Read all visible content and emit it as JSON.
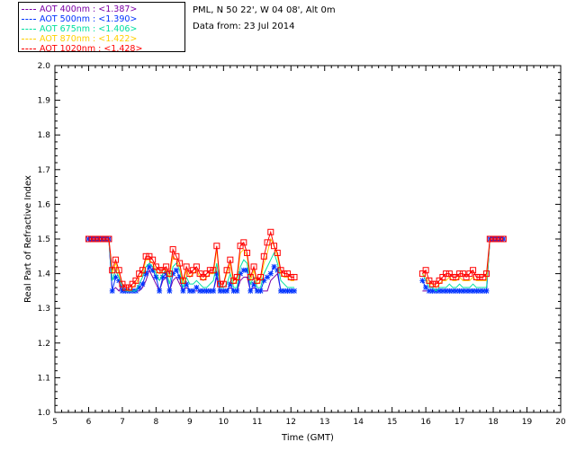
{
  "header": {
    "site": "PML, N 50 22', W 04 08', Alt 0m",
    "date": "Data from: 23 Jul 2014"
  },
  "chart_data": {
    "type": "line",
    "xlabel": "Time (GMT)",
    "ylabel": "Real Part of Refractive Index",
    "xlim": [
      5,
      20
    ],
    "ylim": [
      1.0,
      2.0
    ],
    "xticks": [
      5,
      6,
      7,
      8,
      9,
      10,
      11,
      12,
      13,
      14,
      15,
      16,
      17,
      18,
      19,
      20
    ],
    "yticks": [
      "1.0",
      "1.1",
      "1.2",
      "1.3",
      "1.4",
      "1.5",
      "1.6",
      "1.7",
      "1.8",
      "1.9",
      "2.0"
    ],
    "legend_position": "top-left, outside plot",
    "x": [
      6.0,
      6.1,
      6.2,
      6.3,
      6.4,
      6.5,
      6.6,
      6.7,
      6.8,
      6.9,
      7.0,
      7.1,
      7.2,
      7.3,
      7.4,
      7.5,
      7.6,
      7.7,
      7.8,
      7.9,
      8.0,
      8.1,
      8.2,
      8.3,
      8.4,
      8.5,
      8.6,
      8.7,
      8.8,
      8.9,
      9.0,
      9.1,
      9.2,
      9.3,
      9.4,
      9.5,
      9.6,
      9.7,
      9.8,
      9.9,
      10.0,
      10.1,
      10.2,
      10.3,
      10.4,
      10.5,
      10.6,
      10.7,
      10.8,
      10.9,
      11.0,
      11.1,
      11.2,
      11.3,
      11.4,
      11.5,
      11.6,
      11.7,
      11.8,
      11.9,
      12.0,
      12.1,
      15.9,
      16.0,
      16.1,
      16.2,
      16.3,
      16.4,
      16.5,
      16.6,
      16.7,
      16.8,
      16.9,
      17.0,
      17.1,
      17.2,
      17.3,
      17.4,
      17.5,
      17.6,
      17.7,
      17.8,
      17.9,
      18.0,
      18.1,
      18.2,
      18.3
    ],
    "series": [
      {
        "name": "AOT  400nm : <1.387>",
        "color": "#7b00a6",
        "marker": "none",
        "values": [
          1.5,
          1.5,
          1.5,
          1.5,
          1.5,
          1.5,
          1.5,
          1.35,
          1.36,
          1.35,
          1.37,
          1.35,
          1.35,
          1.35,
          1.35,
          1.35,
          1.36,
          1.38,
          1.41,
          1.39,
          1.37,
          1.35,
          1.38,
          1.39,
          1.35,
          1.38,
          1.39,
          1.37,
          1.35,
          1.36,
          1.35,
          1.35,
          1.35,
          1.35,
          1.35,
          1.35,
          1.35,
          1.35,
          1.39,
          1.35,
          1.35,
          1.35,
          1.36,
          1.35,
          1.35,
          1.38,
          1.39,
          1.39,
          1.35,
          1.36,
          1.35,
          1.35,
          1.35,
          1.35,
          1.38,
          1.39,
          1.4,
          1.35,
          1.35,
          1.35,
          1.35,
          1.35,
          1.35,
          1.35,
          1.35,
          1.35,
          1.35,
          1.35,
          1.35,
          1.35,
          1.35,
          1.35,
          1.35,
          1.35,
          1.35,
          1.35,
          1.35,
          1.35,
          1.35,
          1.35,
          1.35,
          1.35,
          1.5,
          1.5,
          1.5,
          1.5,
          1.5
        ]
      },
      {
        "name": "AOT  500nm : <1.390>",
        "color": "#0033ff",
        "marker": "star",
        "values": [
          1.5,
          1.5,
          1.5,
          1.5,
          1.5,
          1.5,
          1.5,
          1.35,
          1.39,
          1.38,
          1.35,
          1.35,
          1.35,
          1.35,
          1.35,
          1.36,
          1.37,
          1.4,
          1.42,
          1.41,
          1.39,
          1.35,
          1.39,
          1.4,
          1.35,
          1.4,
          1.41,
          1.39,
          1.35,
          1.37,
          1.35,
          1.35,
          1.36,
          1.35,
          1.35,
          1.35,
          1.35,
          1.35,
          1.4,
          1.35,
          1.35,
          1.35,
          1.37,
          1.35,
          1.35,
          1.4,
          1.41,
          1.41,
          1.35,
          1.37,
          1.35,
          1.35,
          1.38,
          1.39,
          1.4,
          1.42,
          1.41,
          1.35,
          1.35,
          1.35,
          1.35,
          1.35,
          1.38,
          1.36,
          1.35,
          1.35,
          1.35,
          1.35,
          1.35,
          1.35,
          1.35,
          1.35,
          1.35,
          1.35,
          1.35,
          1.35,
          1.35,
          1.35,
          1.35,
          1.35,
          1.35,
          1.35,
          1.5,
          1.5,
          1.5,
          1.5,
          1.5
        ]
      },
      {
        "name": "AOT  675nm : <1.406>",
        "color": "#00e0a0",
        "marker": "none",
        "values": [
          1.5,
          1.5,
          1.5,
          1.5,
          1.5,
          1.5,
          1.5,
          1.38,
          1.41,
          1.39,
          1.36,
          1.35,
          1.35,
          1.35,
          1.35,
          1.37,
          1.39,
          1.42,
          1.43,
          1.42,
          1.4,
          1.38,
          1.4,
          1.41,
          1.37,
          1.42,
          1.43,
          1.41,
          1.36,
          1.39,
          1.37,
          1.37,
          1.38,
          1.37,
          1.36,
          1.36,
          1.37,
          1.38,
          1.43,
          1.36,
          1.36,
          1.37,
          1.4,
          1.36,
          1.36,
          1.42,
          1.44,
          1.43,
          1.37,
          1.39,
          1.36,
          1.36,
          1.4,
          1.42,
          1.44,
          1.46,
          1.43,
          1.38,
          1.37,
          1.36,
          1.36,
          1.36,
          1.4,
          1.38,
          1.36,
          1.36,
          1.35,
          1.36,
          1.36,
          1.36,
          1.37,
          1.36,
          1.36,
          1.37,
          1.36,
          1.36,
          1.36,
          1.37,
          1.36,
          1.36,
          1.36,
          1.36,
          1.5,
          1.5,
          1.5,
          1.5,
          1.5
        ]
      },
      {
        "name": "AOT  870nm : <1.422>",
        "color": "#ffd000",
        "marker": "none",
        "values": [
          1.5,
          1.5,
          1.5,
          1.5,
          1.5,
          1.5,
          1.5,
          1.4,
          1.43,
          1.4,
          1.37,
          1.36,
          1.35,
          1.36,
          1.37,
          1.39,
          1.4,
          1.44,
          1.44,
          1.43,
          1.41,
          1.4,
          1.41,
          1.41,
          1.39,
          1.45,
          1.44,
          1.42,
          1.37,
          1.41,
          1.39,
          1.4,
          1.41,
          1.39,
          1.38,
          1.39,
          1.4,
          1.4,
          1.47,
          1.37,
          1.37,
          1.4,
          1.43,
          1.37,
          1.38,
          1.46,
          1.47,
          1.45,
          1.38,
          1.41,
          1.37,
          1.38,
          1.43,
          1.46,
          1.5,
          1.48,
          1.45,
          1.4,
          1.39,
          1.39,
          1.38,
          1.38,
          1.4,
          1.39,
          1.37,
          1.37,
          1.36,
          1.37,
          1.38,
          1.38,
          1.39,
          1.38,
          1.38,
          1.39,
          1.38,
          1.38,
          1.38,
          1.39,
          1.38,
          1.38,
          1.38,
          1.38,
          1.5,
          1.5,
          1.5,
          1.5,
          1.5
        ]
      },
      {
        "name": "AOT 1020nm : <1.428>",
        "color": "#ff0000",
        "marker": "square",
        "values": [
          1.5,
          1.5,
          1.5,
          1.5,
          1.5,
          1.5,
          1.5,
          1.41,
          1.44,
          1.41,
          1.37,
          1.36,
          1.36,
          1.37,
          1.38,
          1.4,
          1.41,
          1.45,
          1.45,
          1.44,
          1.42,
          1.41,
          1.41,
          1.42,
          1.4,
          1.47,
          1.45,
          1.43,
          1.38,
          1.42,
          1.4,
          1.41,
          1.42,
          1.4,
          1.39,
          1.4,
          1.41,
          1.41,
          1.48,
          1.37,
          1.37,
          1.41,
          1.44,
          1.38,
          1.39,
          1.48,
          1.49,
          1.46,
          1.39,
          1.42,
          1.38,
          1.39,
          1.45,
          1.49,
          1.52,
          1.48,
          1.46,
          1.41,
          1.4,
          1.4,
          1.39,
          1.39,
          1.4,
          1.41,
          1.38,
          1.37,
          1.37,
          1.38,
          1.39,
          1.4,
          1.4,
          1.39,
          1.39,
          1.4,
          1.4,
          1.39,
          1.4,
          1.41,
          1.39,
          1.39,
          1.39,
          1.4,
          1.5,
          1.5,
          1.5,
          1.5,
          1.5
        ]
      }
    ]
  }
}
